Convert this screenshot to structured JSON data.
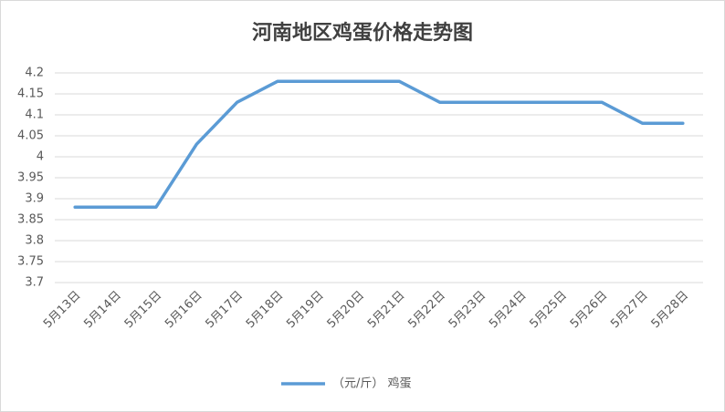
{
  "chart_data": {
    "type": "line",
    "title": "河南地区鸡蛋价格走势图",
    "categories": [
      "5月13日",
      "5月14日",
      "5月15日",
      "5月16日",
      "5月17日",
      "5月18日",
      "5月19日",
      "5月20日",
      "5月21日",
      "5月22日",
      "5月23日",
      "5月24日",
      "5月25日",
      "5月26日",
      "5月27日",
      "5月28日"
    ],
    "series": [
      {
        "name": "（元/斤） 鸡蛋",
        "color": "#5b9bd5",
        "values": [
          3.88,
          3.88,
          3.88,
          4.03,
          4.13,
          4.18,
          4.18,
          4.18,
          4.18,
          4.13,
          4.13,
          4.13,
          4.13,
          4.13,
          4.08,
          4.08
        ]
      }
    ],
    "ylim": [
      3.7,
      4.2
    ],
    "yticks": [
      3.7,
      3.75,
      3.8,
      3.85,
      3.9,
      3.95,
      4,
      4.05,
      4.1,
      4.15,
      4.2
    ],
    "grid": true,
    "legend": "bottom"
  }
}
